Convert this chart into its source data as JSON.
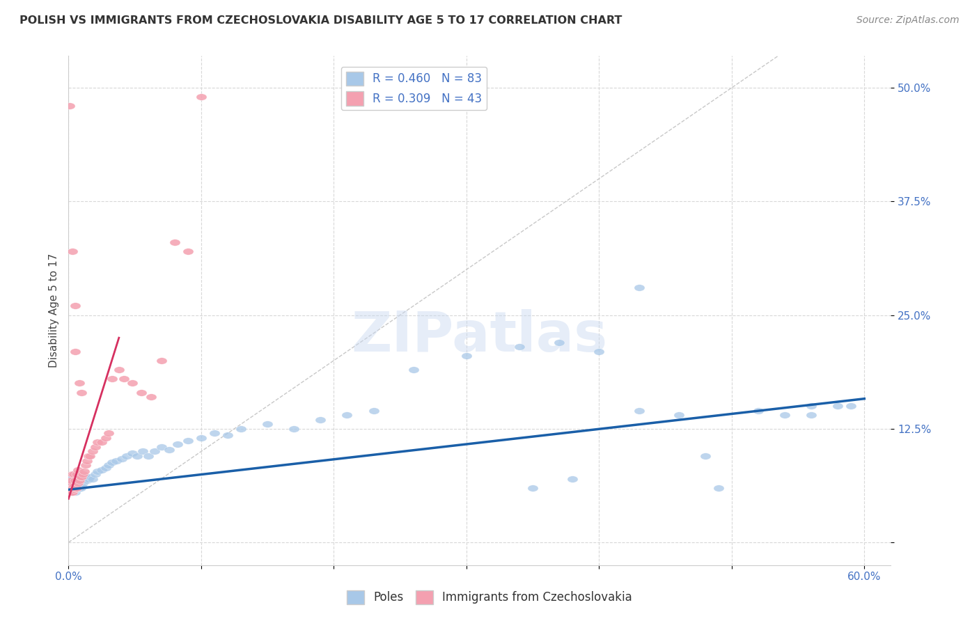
{
  "title": "POLISH VS IMMIGRANTS FROM CZECHOSLOVAKIA DISABILITY AGE 5 TO 17 CORRELATION CHART",
  "source": "Source: ZipAtlas.com",
  "ylabel": "Disability Age 5 to 17",
  "xlim": [
    0.0,
    0.62
  ],
  "ylim": [
    -0.025,
    0.535
  ],
  "xticks": [
    0.0,
    0.1,
    0.2,
    0.3,
    0.4,
    0.5,
    0.6
  ],
  "yticks": [
    0.0,
    0.125,
    0.25,
    0.375,
    0.5
  ],
  "xticklabels": [
    "0.0%",
    "",
    "",
    "",
    "",
    "",
    "60.0%"
  ],
  "yticklabels_right": [
    "",
    "12.5%",
    "25.0%",
    "37.5%",
    "50.0%"
  ],
  "legend_blue_label": "R = 0.460   N = 83",
  "legend_pink_label": "R = 0.309   N = 43",
  "blue_color": "#a8c8e8",
  "pink_color": "#f4a0b0",
  "trend_blue_color": "#1a5fa8",
  "trend_pink_color": "#d63060",
  "watermark": "ZIPatlas",
  "poles_x": [
    0.001,
    0.001,
    0.001,
    0.002,
    0.002,
    0.002,
    0.002,
    0.003,
    0.003,
    0.003,
    0.003,
    0.004,
    0.004,
    0.004,
    0.004,
    0.005,
    0.005,
    0.005,
    0.005,
    0.006,
    0.006,
    0.006,
    0.007,
    0.007,
    0.007,
    0.008,
    0.008,
    0.009,
    0.009,
    0.01,
    0.01,
    0.011,
    0.012,
    0.013,
    0.014,
    0.015,
    0.016,
    0.018,
    0.02,
    0.022,
    0.025,
    0.028,
    0.03,
    0.033,
    0.036,
    0.04,
    0.044,
    0.048,
    0.052,
    0.056,
    0.06,
    0.065,
    0.07,
    0.076,
    0.082,
    0.09,
    0.1,
    0.11,
    0.12,
    0.13,
    0.15,
    0.17,
    0.19,
    0.21,
    0.23,
    0.26,
    0.3,
    0.34,
    0.37,
    0.4,
    0.43,
    0.46,
    0.49,
    0.52,
    0.54,
    0.56,
    0.58,
    0.59,
    0.48,
    0.43,
    0.38,
    0.35,
    0.56
  ],
  "poles_y": [
    0.055,
    0.06,
    0.065,
    0.055,
    0.06,
    0.068,
    0.072,
    0.055,
    0.062,
    0.068,
    0.072,
    0.058,
    0.062,
    0.068,
    0.075,
    0.055,
    0.062,
    0.068,
    0.072,
    0.058,
    0.065,
    0.07,
    0.06,
    0.065,
    0.07,
    0.06,
    0.065,
    0.06,
    0.065,
    0.062,
    0.068,
    0.065,
    0.068,
    0.072,
    0.068,
    0.07,
    0.072,
    0.07,
    0.075,
    0.078,
    0.08,
    0.082,
    0.085,
    0.088,
    0.09,
    0.092,
    0.095,
    0.098,
    0.095,
    0.1,
    0.095,
    0.1,
    0.105,
    0.102,
    0.108,
    0.112,
    0.115,
    0.12,
    0.118,
    0.125,
    0.13,
    0.125,
    0.135,
    0.14,
    0.145,
    0.19,
    0.205,
    0.215,
    0.22,
    0.21,
    0.145,
    0.14,
    0.06,
    0.145,
    0.14,
    0.14,
    0.15,
    0.15,
    0.095,
    0.28,
    0.07,
    0.06,
    0.15
  ],
  "czech_x": [
    0.001,
    0.001,
    0.001,
    0.002,
    0.002,
    0.002,
    0.003,
    0.003,
    0.003,
    0.004,
    0.004,
    0.004,
    0.005,
    0.005,
    0.006,
    0.006,
    0.007,
    0.007,
    0.008,
    0.009,
    0.01,
    0.011,
    0.012,
    0.013,
    0.014,
    0.015,
    0.016,
    0.018,
    0.02,
    0.022,
    0.025,
    0.028,
    0.03,
    0.033,
    0.038,
    0.042,
    0.048,
    0.055,
    0.062,
    0.07,
    0.08,
    0.09,
    0.1
  ],
  "czech_y": [
    0.055,
    0.06,
    0.065,
    0.055,
    0.06,
    0.068,
    0.055,
    0.06,
    0.075,
    0.058,
    0.062,
    0.075,
    0.06,
    0.068,
    0.06,
    0.075,
    0.065,
    0.08,
    0.068,
    0.072,
    0.072,
    0.075,
    0.078,
    0.085,
    0.09,
    0.095,
    0.095,
    0.1,
    0.105,
    0.11,
    0.11,
    0.115,
    0.12,
    0.18,
    0.19,
    0.18,
    0.175,
    0.165,
    0.16,
    0.2,
    0.33,
    0.32,
    0.49
  ],
  "czech_outliers_x": [
    0.001,
    0.003,
    0.005,
    0.005,
    0.008,
    0.01
  ],
  "czech_outliers_y": [
    0.48,
    0.32,
    0.26,
    0.21,
    0.175,
    0.165
  ],
  "grid_color": "#d8d8d8",
  "background_color": "#ffffff",
  "bottom_legend": [
    "Poles",
    "Immigrants from Czechoslovakia"
  ]
}
